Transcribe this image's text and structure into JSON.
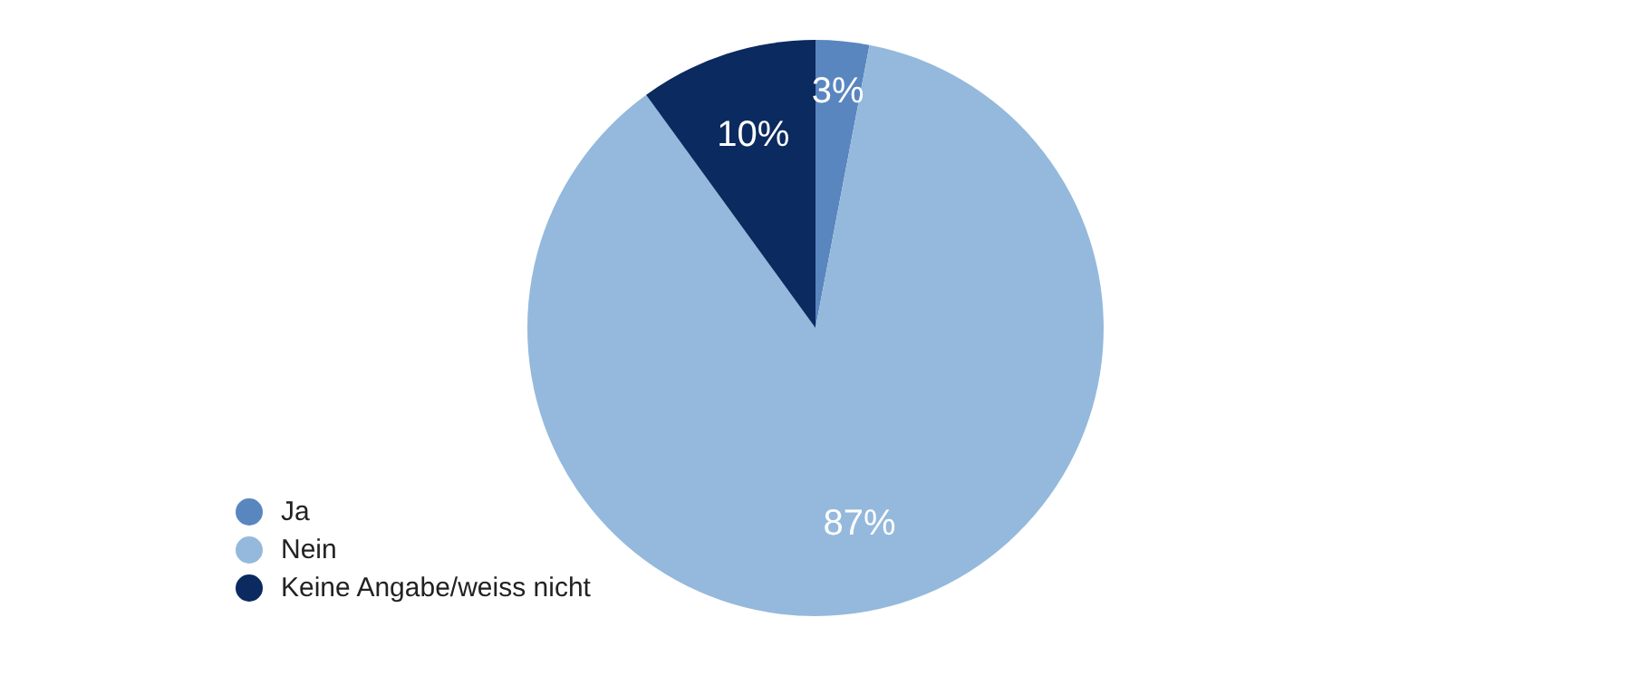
{
  "chart_data": {
    "type": "pie",
    "categories": [
      "Ja",
      "Nein",
      "Keine Angabe/weiss nicht"
    ],
    "values": [
      3,
      87,
      10
    ],
    "colors": [
      "#5a86bf",
      "#94b9dc",
      "#0b2a5f"
    ],
    "value_labels": [
      "3%",
      "87%",
      "10%"
    ],
    "legend": "bottom left"
  }
}
